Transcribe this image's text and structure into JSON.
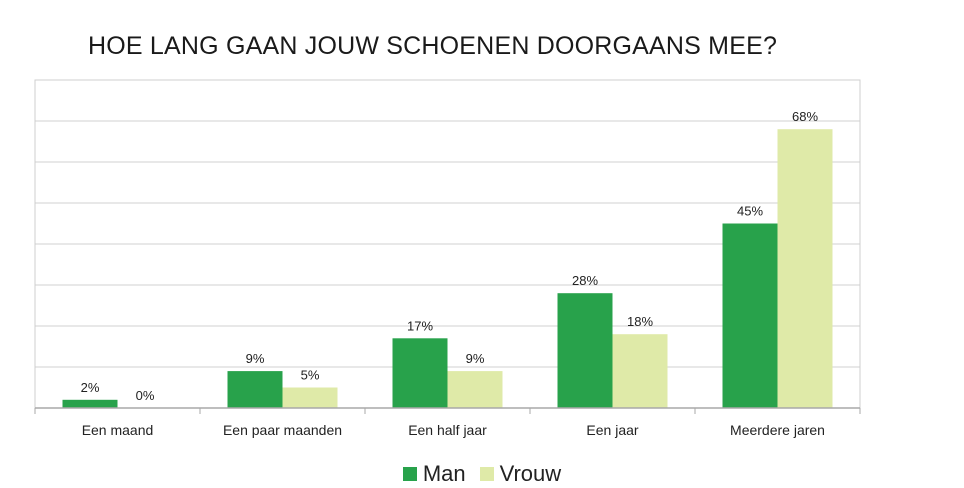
{
  "chart_data": {
    "type": "bar",
    "title": "HOE LANG GAAN JOUW SCHOENEN DOORGAANS MEE?",
    "xlabel": "",
    "ylabel": "",
    "categories": [
      "Een maand",
      "Een paar maanden",
      "Een half jaar",
      "Een jaar",
      "Meerdere jaren"
    ],
    "series": [
      {
        "name": "Man",
        "color": "#28a24b",
        "values": [
          2,
          9,
          17,
          28,
          45
        ],
        "labels": [
          "2%",
          "9%",
          "17%",
          "28%",
          "45%"
        ]
      },
      {
        "name": "Vrouw",
        "color": "#dfeaa8",
        "values": [
          0,
          5,
          9,
          18,
          68
        ],
        "labels": [
          "0%",
          "5%",
          "9%",
          "18%",
          "68%"
        ]
      }
    ],
    "ylim": [
      0,
      80
    ],
    "grid": true,
    "legend": "bottom",
    "tick_labels_y": "hidden"
  }
}
